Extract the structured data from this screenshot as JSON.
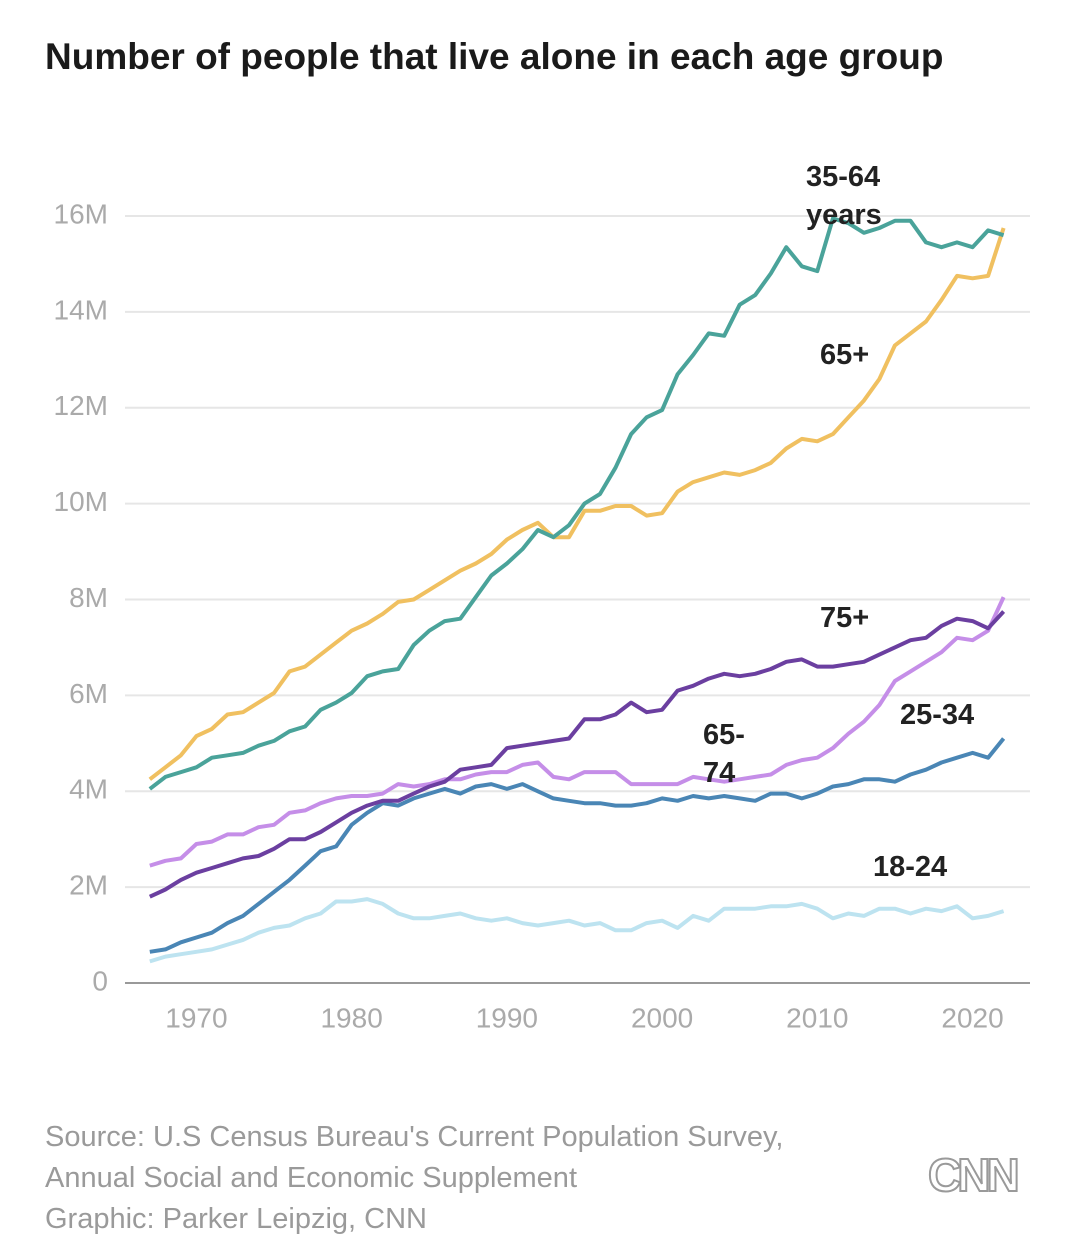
{
  "chart_data": {
    "type": "line",
    "title": "Number of people that live alone in each age group",
    "x": [
      1967,
      1968,
      1969,
      1970,
      1971,
      1972,
      1973,
      1974,
      1975,
      1976,
      1977,
      1978,
      1979,
      1980,
      1981,
      1982,
      1983,
      1984,
      1985,
      1986,
      1987,
      1988,
      1989,
      1990,
      1991,
      1992,
      1993,
      1994,
      1995,
      1996,
      1997,
      1998,
      1999,
      2000,
      2001,
      2002,
      2003,
      2004,
      2005,
      2006,
      2007,
      2008,
      2009,
      2010,
      2011,
      2012,
      2013,
      2014,
      2015,
      2016,
      2017,
      2018,
      2019,
      2020,
      2021,
      2022
    ],
    "series": [
      {
        "name": "35-64 years",
        "color": "#4aa39a",
        "values": [
          4.05,
          4.3,
          4.4,
          4.5,
          4.7,
          4.75,
          4.8,
          4.95,
          5.05,
          5.25,
          5.35,
          5.7,
          5.85,
          6.05,
          6.4,
          6.5,
          6.55,
          7.05,
          7.35,
          7.55,
          7.6,
          8.05,
          8.5,
          8.75,
          9.05,
          9.45,
          9.3,
          9.55,
          10.0,
          10.2,
          10.75,
          11.45,
          11.8,
          11.95,
          12.7,
          13.1,
          13.55,
          13.5,
          14.15,
          14.35,
          14.8,
          15.35,
          14.95,
          14.85,
          15.95,
          15.85,
          15.65,
          15.75,
          15.9,
          15.9,
          15.45,
          15.35,
          15.45,
          15.35,
          15.7,
          15.6
        ]
      },
      {
        "name": "65+",
        "color": "#f0c060",
        "values": [
          4.25,
          4.5,
          4.75,
          5.15,
          5.3,
          5.6,
          5.65,
          5.85,
          6.05,
          6.5,
          6.6,
          6.85,
          7.1,
          7.35,
          7.5,
          7.7,
          7.95,
          8.0,
          8.2,
          8.4,
          8.6,
          8.75,
          8.95,
          9.25,
          9.45,
          9.6,
          9.3,
          9.3,
          9.85,
          9.85,
          9.95,
          9.95,
          9.75,
          9.8,
          10.25,
          10.45,
          10.55,
          10.65,
          10.6,
          10.7,
          10.85,
          11.15,
          11.35,
          11.3,
          11.45,
          11.8,
          12.15,
          12.6,
          13.3,
          13.55,
          13.8,
          14.25,
          14.75,
          14.7,
          14.75,
          15.75
        ]
      },
      {
        "name": "75+",
        "color": "#6b3fa0",
        "values": [
          1.8,
          1.95,
          2.15,
          2.3,
          2.4,
          2.5,
          2.6,
          2.65,
          2.8,
          3.0,
          3.0,
          3.15,
          3.35,
          3.55,
          3.7,
          3.8,
          3.8,
          3.95,
          4.1,
          4.2,
          4.45,
          4.5,
          4.55,
          4.9,
          4.95,
          5.0,
          5.05,
          5.1,
          5.5,
          5.5,
          5.6,
          5.85,
          5.65,
          5.7,
          6.1,
          6.2,
          6.35,
          6.45,
          6.4,
          6.45,
          6.55,
          6.7,
          6.75,
          6.6,
          6.6,
          6.65,
          6.7,
          6.85,
          7.0,
          7.15,
          7.2,
          7.45,
          7.6,
          7.55,
          7.4,
          7.75
        ]
      },
      {
        "name": "25-34",
        "color": "#c58ee8",
        "values": [
          2.45,
          2.55,
          2.6,
          2.9,
          2.95,
          3.1,
          3.1,
          3.25,
          3.3,
          3.55,
          3.6,
          3.75,
          3.85,
          3.9,
          3.9,
          3.95,
          4.15,
          4.1,
          4.15,
          4.25,
          4.25,
          4.35,
          4.4,
          4.4,
          4.55,
          4.6,
          4.3,
          4.25,
          4.4,
          4.4,
          4.4,
          4.15,
          4.15,
          4.15,
          4.15,
          4.3,
          4.25,
          4.2,
          4.25,
          4.3,
          4.35,
          4.55,
          4.65,
          4.7,
          4.9,
          5.2,
          5.45,
          5.8,
          6.3,
          6.5,
          6.7,
          6.9,
          7.2,
          7.15,
          7.35,
          8.05
        ]
      },
      {
        "name": "65-74",
        "color": "#4a86b5",
        "values": [
          0.65,
          0.7,
          0.85,
          0.95,
          1.05,
          1.25,
          1.4,
          1.65,
          1.9,
          2.15,
          2.45,
          2.75,
          2.85,
          3.3,
          3.55,
          3.75,
          3.7,
          3.85,
          3.95,
          4.05,
          3.95,
          4.1,
          4.15,
          4.05,
          4.15,
          4.0,
          3.85,
          3.8,
          3.75,
          3.75,
          3.7,
          3.7,
          3.75,
          3.85,
          3.8,
          3.9,
          3.85,
          3.9,
          3.85,
          3.8,
          3.95,
          3.95,
          3.85,
          3.95,
          4.1,
          4.15,
          4.25,
          4.25,
          4.2,
          4.35,
          4.45,
          4.6,
          4.7,
          4.8,
          4.7,
          5.1
        ]
      },
      {
        "name": "18-24",
        "color": "#bde3f0",
        "values": [
          0.45,
          0.55,
          0.6,
          0.65,
          0.7,
          0.8,
          0.9,
          1.05,
          1.15,
          1.2,
          1.35,
          1.45,
          1.7,
          1.7,
          1.75,
          1.65,
          1.45,
          1.35,
          1.35,
          1.4,
          1.45,
          1.35,
          1.3,
          1.35,
          1.25,
          1.2,
          1.25,
          1.3,
          1.2,
          1.25,
          1.1,
          1.1,
          1.25,
          1.3,
          1.15,
          1.4,
          1.3,
          1.55,
          1.55,
          1.55,
          1.6,
          1.6,
          1.65,
          1.55,
          1.35,
          1.45,
          1.4,
          1.55,
          1.55,
          1.45,
          1.55,
          1.5,
          1.6,
          1.35,
          1.4,
          1.5
        ]
      }
    ],
    "xlim": [
      1965.4,
      2023.7
    ],
    "xticks": [
      1970,
      1980,
      1990,
      2000,
      2010,
      2020
    ],
    "ylim": [
      0,
      16
    ],
    "yticks": [
      0,
      {
        "value": 2,
        "label": "2M"
      },
      {
        "value": 4,
        "label": "4M"
      },
      {
        "value": 6,
        "label": "6M"
      },
      {
        "value": 8,
        "label": "8M"
      },
      {
        "value": 10,
        "label": "10M"
      },
      {
        "value": 12,
        "label": "12M"
      },
      {
        "value": 14,
        "label": "14M"
      },
      {
        "value": 16,
        "label": "16M"
      }
    ],
    "grid": true,
    "footer": [
      "Source: U.S Census Bureau's Current Population Survey,",
      "Annual Social and Economic Supplement",
      "Graphic: Parker Leipzig, CNN"
    ],
    "logo": "CNN"
  }
}
